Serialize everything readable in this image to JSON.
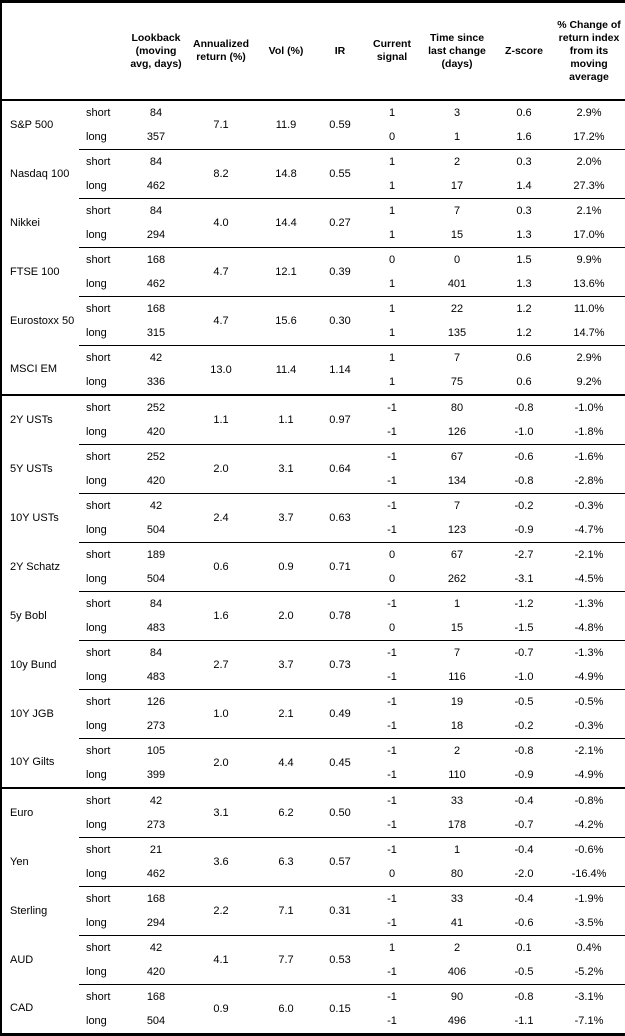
{
  "table": {
    "headers": [
      "",
      "",
      "Lookback (moving avg, days)",
      "Annualized return (%)",
      "Vol (%)",
      "IR",
      "Current signal",
      "Time since last change (days)",
      "Z-score",
      "% Change of return index from its moving average"
    ],
    "sections": [
      {
        "assets": [
          {
            "name": "S&P 500",
            "annualized_return": "7.1",
            "vol": "11.9",
            "ir": "0.59",
            "rows": [
              {
                "period": "short",
                "lookback": "84",
                "signal": "1",
                "days": "3",
                "z_score": "0.6",
                "pct_change": "2.9%"
              },
              {
                "period": "long",
                "lookback": "357",
                "signal": "0",
                "days": "1",
                "z_score": "1.6",
                "pct_change": "17.2%"
              }
            ]
          },
          {
            "name": "Nasdaq 100",
            "annualized_return": "8.2",
            "vol": "14.8",
            "ir": "0.55",
            "rows": [
              {
                "period": "short",
                "lookback": "84",
                "signal": "1",
                "days": "2",
                "z_score": "0.3",
                "pct_change": "2.0%"
              },
              {
                "period": "long",
                "lookback": "462",
                "signal": "1",
                "days": "17",
                "z_score": "1.4",
                "pct_change": "27.3%"
              }
            ]
          },
          {
            "name": "Nikkei",
            "annualized_return": "4.0",
            "vol": "14.4",
            "ir": "0.27",
            "rows": [
              {
                "period": "short",
                "lookback": "84",
                "signal": "1",
                "days": "7",
                "z_score": "0.3",
                "pct_change": "2.1%"
              },
              {
                "period": "long",
                "lookback": "294",
                "signal": "1",
                "days": "15",
                "z_score": "1.3",
                "pct_change": "17.0%"
              }
            ]
          },
          {
            "name": "FTSE 100",
            "annualized_return": "4.7",
            "vol": "12.1",
            "ir": "0.39",
            "rows": [
              {
                "period": "short",
                "lookback": "168",
                "signal": "0",
                "days": "0",
                "z_score": "1.5",
                "pct_change": "9.9%"
              },
              {
                "period": "long",
                "lookback": "462",
                "signal": "1",
                "days": "401",
                "z_score": "1.3",
                "pct_change": "13.6%"
              }
            ]
          },
          {
            "name": "Eurostoxx 50",
            "annualized_return": "4.7",
            "vol": "15.6",
            "ir": "0.30",
            "rows": [
              {
                "period": "short",
                "lookback": "168",
                "signal": "1",
                "days": "22",
                "z_score": "1.2",
                "pct_change": "11.0%"
              },
              {
                "period": "long",
                "lookback": "315",
                "signal": "1",
                "days": "135",
                "z_score": "1.2",
                "pct_change": "14.7%"
              }
            ]
          },
          {
            "name": "MSCI EM",
            "annualized_return": "13.0",
            "vol": "11.4",
            "ir": "1.14",
            "rows": [
              {
                "period": "short",
                "lookback": "42",
                "signal": "1",
                "days": "7",
                "z_score": "0.6",
                "pct_change": "2.9%"
              },
              {
                "period": "long",
                "lookback": "336",
                "signal": "1",
                "days": "75",
                "z_score": "0.6",
                "pct_change": "9.2%"
              }
            ]
          }
        ]
      },
      {
        "assets": [
          {
            "name": "2Y USTs",
            "annualized_return": "1.1",
            "vol": "1.1",
            "ir": "0.97",
            "rows": [
              {
                "period": "short",
                "lookback": "252",
                "signal": "-1",
                "days": "80",
                "z_score": "-0.8",
                "pct_change": "-1.0%"
              },
              {
                "period": "long",
                "lookback": "420",
                "signal": "-1",
                "days": "126",
                "z_score": "-1.0",
                "pct_change": "-1.8%"
              }
            ]
          },
          {
            "name": "5Y USTs",
            "annualized_return": "2.0",
            "vol": "3.1",
            "ir": "0.64",
            "rows": [
              {
                "period": "short",
                "lookback": "252",
                "signal": "-1",
                "days": "67",
                "z_score": "-0.6",
                "pct_change": "-1.6%"
              },
              {
                "period": "long",
                "lookback": "420",
                "signal": "-1",
                "days": "134",
                "z_score": "-0.8",
                "pct_change": "-2.8%"
              }
            ]
          },
          {
            "name": "10Y USTs",
            "annualized_return": "2.4",
            "vol": "3.7",
            "ir": "0.63",
            "rows": [
              {
                "period": "short",
                "lookback": "42",
                "signal": "-1",
                "days": "7",
                "z_score": "-0.2",
                "pct_change": "-0.3%"
              },
              {
                "period": "long",
                "lookback": "504",
                "signal": "-1",
                "days": "123",
                "z_score": "-0.9",
                "pct_change": "-4.7%"
              }
            ]
          },
          {
            "name": "2Y Schatz",
            "annualized_return": "0.6",
            "vol": "0.9",
            "ir": "0.71",
            "rows": [
              {
                "period": "short",
                "lookback": "189",
                "signal": "0",
                "days": "67",
                "z_score": "-2.7",
                "pct_change": "-2.1%"
              },
              {
                "period": "long",
                "lookback": "504",
                "signal": "0",
                "days": "262",
                "z_score": "-3.1",
                "pct_change": "-4.5%"
              }
            ]
          },
          {
            "name": "5y Bobl",
            "annualized_return": "1.6",
            "vol": "2.0",
            "ir": "0.78",
            "rows": [
              {
                "period": "short",
                "lookback": "84",
                "signal": "-1",
                "days": "1",
                "z_score": "-1.2",
                "pct_change": "-1.3%"
              },
              {
                "period": "long",
                "lookback": "483",
                "signal": "0",
                "days": "15",
                "z_score": "-1.5",
                "pct_change": "-4.8%"
              }
            ]
          },
          {
            "name": "10y Bund",
            "annualized_return": "2.7",
            "vol": "3.7",
            "ir": "0.73",
            "rows": [
              {
                "period": "short",
                "lookback": "84",
                "signal": "-1",
                "days": "7",
                "z_score": "-0.7",
                "pct_change": "-1.3%"
              },
              {
                "period": "long",
                "lookback": "483",
                "signal": "-1",
                "days": "116",
                "z_score": "-1.0",
                "pct_change": "-4.9%"
              }
            ]
          },
          {
            "name": "10Y JGB",
            "annualized_return": "1.0",
            "vol": "2.1",
            "ir": "0.49",
            "rows": [
              {
                "period": "short",
                "lookback": "126",
                "signal": "-1",
                "days": "19",
                "z_score": "-0.5",
                "pct_change": "-0.5%"
              },
              {
                "period": "long",
                "lookback": "273",
                "signal": "-1",
                "days": "18",
                "z_score": "-0.2",
                "pct_change": "-0.3%"
              }
            ]
          },
          {
            "name": "10Y Gilts",
            "annualized_return": "2.0",
            "vol": "4.4",
            "ir": "0.45",
            "rows": [
              {
                "period": "short",
                "lookback": "105",
                "signal": "-1",
                "days": "2",
                "z_score": "-0.8",
                "pct_change": "-2.1%"
              },
              {
                "period": "long",
                "lookback": "399",
                "signal": "-1",
                "days": "110",
                "z_score": "-0.9",
                "pct_change": "-4.9%"
              }
            ]
          }
        ]
      },
      {
        "assets": [
          {
            "name": "Euro",
            "annualized_return": "3.1",
            "vol": "6.2",
            "ir": "0.50",
            "rows": [
              {
                "period": "short",
                "lookback": "42",
                "signal": "-1",
                "days": "33",
                "z_score": "-0.4",
                "pct_change": "-0.8%"
              },
              {
                "period": "long",
                "lookback": "273",
                "signal": "-1",
                "days": "178",
                "z_score": "-0.7",
                "pct_change": "-4.2%"
              }
            ]
          },
          {
            "name": "Yen",
            "annualized_return": "3.6",
            "vol": "6.3",
            "ir": "0.57",
            "rows": [
              {
                "period": "short",
                "lookback": "21",
                "signal": "-1",
                "days": "1",
                "z_score": "-0.4",
                "pct_change": "-0.6%"
              },
              {
                "period": "long",
                "lookback": "462",
                "signal": "0",
                "days": "80",
                "z_score": "-2.0",
                "pct_change": "-16.4%"
              }
            ]
          },
          {
            "name": "Sterling",
            "annualized_return": "2.2",
            "vol": "7.1",
            "ir": "0.31",
            "rows": [
              {
                "period": "short",
                "lookback": "168",
                "signal": "-1",
                "days": "33",
                "z_score": "-0.4",
                "pct_change": "-1.9%"
              },
              {
                "period": "long",
                "lookback": "294",
                "signal": "-1",
                "days": "41",
                "z_score": "-0.6",
                "pct_change": "-3.5%"
              }
            ]
          },
          {
            "name": "AUD",
            "annualized_return": "4.1",
            "vol": "7.7",
            "ir": "0.53",
            "rows": [
              {
                "period": "short",
                "lookback": "42",
                "signal": "1",
                "days": "2",
                "z_score": "0.1",
                "pct_change": "0.4%"
              },
              {
                "period": "long",
                "lookback": "420",
                "signal": "-1",
                "days": "406",
                "z_score": "-0.5",
                "pct_change": "-5.2%"
              }
            ]
          },
          {
            "name": "CAD",
            "annualized_return": "0.9",
            "vol": "6.0",
            "ir": "0.15",
            "rows": [
              {
                "period": "short",
                "lookback": "168",
                "signal": "-1",
                "days": "90",
                "z_score": "-0.8",
                "pct_change": "-3.1%"
              },
              {
                "period": "long",
                "lookback": "504",
                "signal": "-1",
                "days": "496",
                "z_score": "-1.1",
                "pct_change": "-7.1%"
              }
            ]
          }
        ]
      }
    ]
  }
}
